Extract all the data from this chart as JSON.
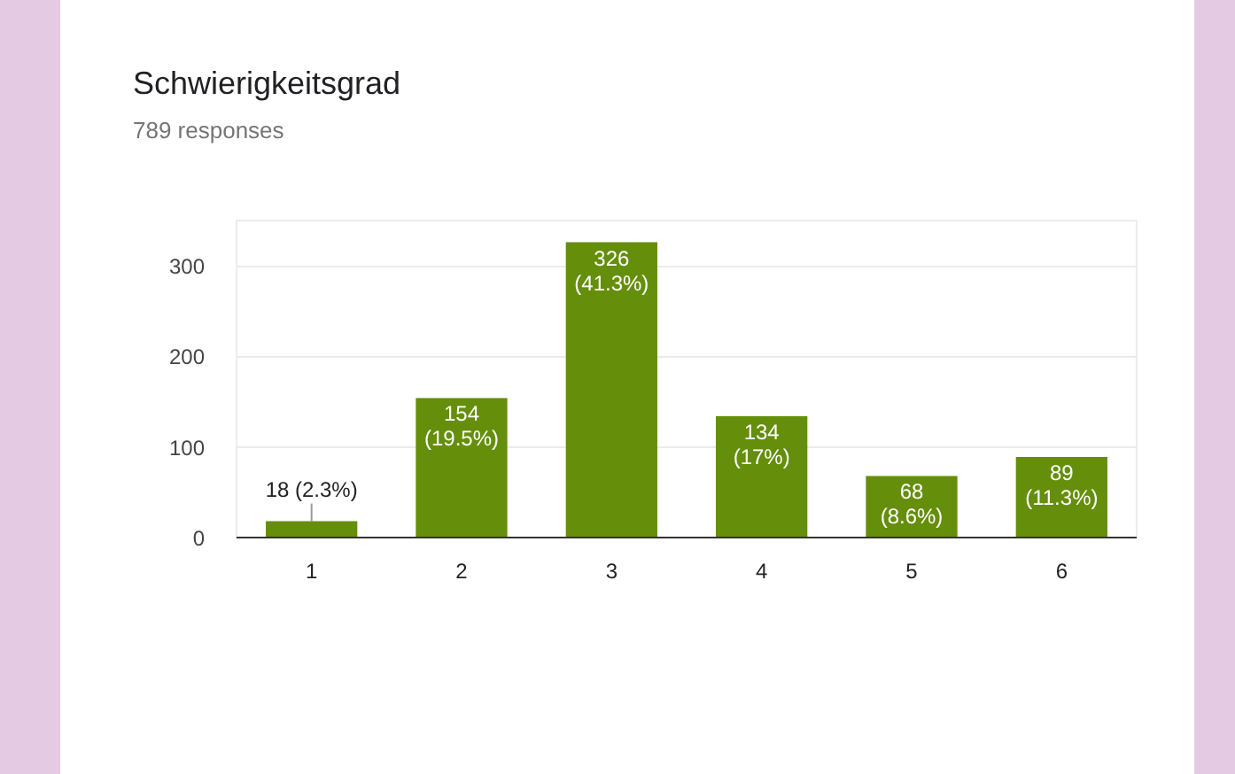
{
  "chart_data": {
    "type": "bar",
    "title": "Schwierigkeitsgrad",
    "subtitle": "789 responses",
    "categories": [
      "1",
      "2",
      "3",
      "4",
      "5",
      "6"
    ],
    "values": [
      18,
      154,
      326,
      134,
      68,
      89
    ],
    "color": "#658e0a",
    "value_labels": [
      "18 (2.3%)",
      "154 (19.5%)",
      "326 (41.3%)",
      "134 (17%)",
      "68 (8.6%)",
      "89 (11.3%)"
    ],
    "ylim": [
      0,
      350
    ],
    "yticks": [
      0,
      100,
      200,
      300
    ],
    "grid": "y"
  }
}
